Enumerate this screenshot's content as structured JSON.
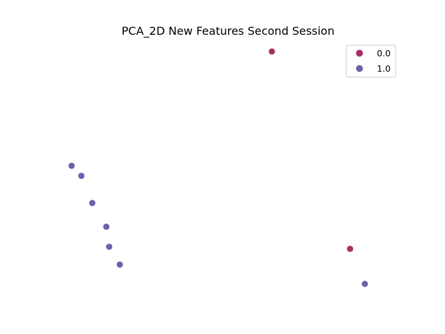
{
  "chart_data": {
    "type": "scatter",
    "title": "PCA_2D New Features Second Session",
    "xlabel": "",
    "ylabel": "",
    "axes_visible": false,
    "grid": false,
    "legend_placement": "top-right",
    "xlim": [
      0,
      100
    ],
    "ylim": [
      0,
      100
    ],
    "series": [
      {
        "name": "0.0",
        "color": "#9f1853",
        "points": [
          {
            "x": 64.0,
            "y": 100.0
          },
          {
            "x": 89.0,
            "y": 15.1
          }
        ]
      },
      {
        "name": "1.0",
        "color": "#5e4fa2",
        "points": [
          {
            "x": 0.0,
            "y": 50.8
          },
          {
            "x": 3.1,
            "y": 46.5
          },
          {
            "x": 6.6,
            "y": 34.8
          },
          {
            "x": 11.1,
            "y": 24.6
          },
          {
            "x": 12.0,
            "y": 16.0
          },
          {
            "x": 15.4,
            "y": 8.3
          },
          {
            "x": 93.7,
            "y": 0.0
          }
        ]
      }
    ]
  }
}
